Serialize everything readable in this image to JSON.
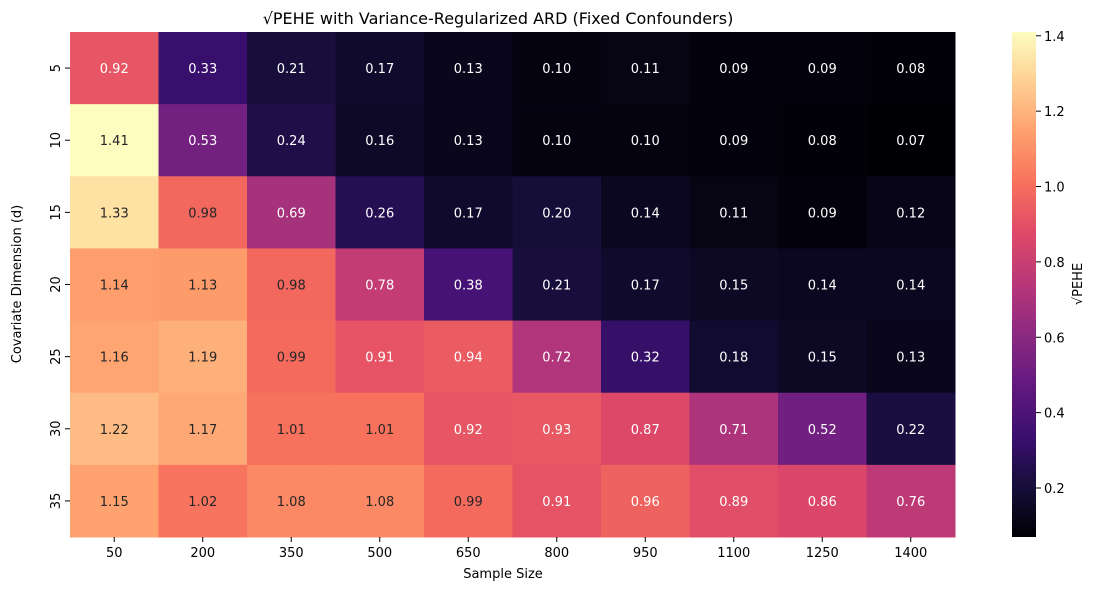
{
  "chart_data": {
    "type": "heatmap",
    "title": "√PEHE with Variance-Regularized ARD (Fixed Confounders)",
    "xlabel": "Sample Size",
    "ylabel": "Covariate Dimension (d)",
    "x_categories": [
      "50",
      "200",
      "350",
      "500",
      "650",
      "800",
      "950",
      "1100",
      "1250",
      "1400"
    ],
    "y_categories": [
      "5",
      "10",
      "15",
      "20",
      "25",
      "30",
      "35"
    ],
    "values": [
      [
        0.92,
        0.33,
        0.21,
        0.17,
        0.13,
        0.1,
        0.11,
        0.09,
        0.09,
        0.08
      ],
      [
        1.41,
        0.53,
        0.24,
        0.16,
        0.13,
        0.1,
        0.1,
        0.09,
        0.08,
        0.07
      ],
      [
        1.33,
        0.98,
        0.69,
        0.26,
        0.17,
        0.2,
        0.14,
        0.11,
        0.09,
        0.12
      ],
      [
        1.14,
        1.13,
        0.98,
        0.78,
        0.38,
        0.21,
        0.17,
        0.15,
        0.14,
        0.14
      ],
      [
        1.16,
        1.19,
        0.99,
        0.91,
        0.94,
        0.72,
        0.32,
        0.18,
        0.15,
        0.13
      ],
      [
        1.22,
        1.17,
        1.01,
        1.01,
        0.92,
        0.93,
        0.87,
        0.71,
        0.52,
        0.22
      ],
      [
        1.15,
        1.02,
        1.08,
        1.08,
        0.99,
        0.91,
        0.96,
        0.89,
        0.86,
        0.76
      ]
    ],
    "colormap": "magma",
    "colorbar": {
      "label": "√PEHE",
      "range": [
        0.07,
        1.41
      ],
      "ticks": [
        "0.2",
        "0.4",
        "0.6",
        "0.8",
        "1.0",
        "1.2",
        "1.4"
      ]
    },
    "annotations": "cell values shown with 2 decimals",
    "grid": false
  }
}
